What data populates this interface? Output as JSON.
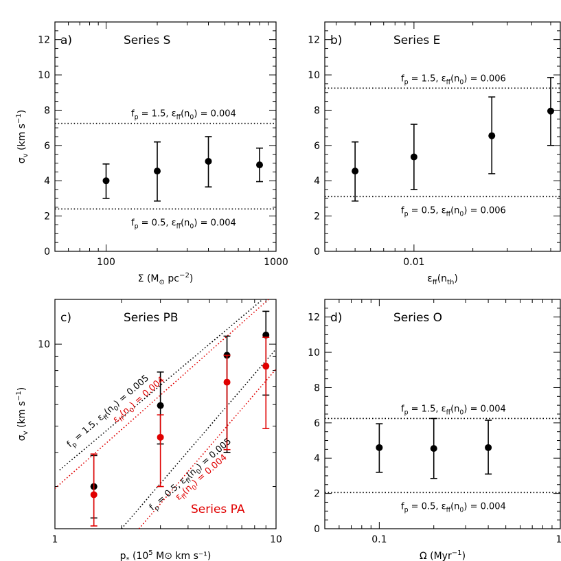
{
  "chart_data": [
    {
      "type": "scatter",
      "panel_label": "a)",
      "series_title": "Series S",
      "xlabel": {
        "base": "Σ (M",
        "sub": "⊙",
        "mid": " pc",
        "sup": "−2",
        "tail": ")"
      },
      "ylabel": {
        "base": "σ",
        "sub": "v",
        "mid": " (km s",
        "sup": "−1",
        "tail": ")"
      },
      "xscale": "log",
      "yscale": "linear",
      "xlim": [
        50,
        1000
      ],
      "ylim": [
        0,
        13
      ],
      "xticks": [
        100,
        1000
      ],
      "xtick_labels": [
        "100",
        "1000"
      ],
      "yticks": [
        0,
        2,
        4,
        6,
        8,
        10,
        12
      ],
      "ytick_labels": [
        "0",
        "2",
        "4",
        "6",
        "8",
        "10",
        "12"
      ],
      "points": [
        {
          "x": 100,
          "y": 4.0,
          "lo": 3.0,
          "hi": 4.95
        },
        {
          "x": 200,
          "y": 4.55,
          "lo": 2.85,
          "hi": 6.2
        },
        {
          "x": 400,
          "y": 5.1,
          "lo": 3.65,
          "hi": 6.5
        },
        {
          "x": 800,
          "y": 4.9,
          "lo": 3.95,
          "hi": 5.85
        }
      ],
      "hlines": [
        {
          "y": 7.25,
          "label": "f_p = 1.5, ε_ff(n_0) = 0.004",
          "label_pos": "above"
        },
        {
          "y": 2.4,
          "label": "f_p = 0.5, ε_ff(n_0) = 0.004",
          "label_pos": "below"
        }
      ]
    },
    {
      "type": "scatter",
      "panel_label": "b)",
      "series_title": "Series E",
      "xlabel": {
        "base": "ε",
        "sub": "ff",
        "mid": "(n",
        "sub2": "th",
        "tail": ")"
      },
      "ylabel": null,
      "xscale": "log",
      "yscale": "linear",
      "xlim": [
        0.0035,
        0.056
      ],
      "ylim": [
        0,
        13
      ],
      "xticks": [
        0.01
      ],
      "xtick_labels": [
        "0.01"
      ],
      "yticks": [
        0,
        2,
        4,
        6,
        8,
        10,
        12
      ],
      "ytick_labels": [
        "0",
        "2",
        "4",
        "6",
        "8",
        "10",
        "12"
      ],
      "points": [
        {
          "x": 0.005,
          "y": 4.55,
          "lo": 2.85,
          "hi": 6.2
        },
        {
          "x": 0.01,
          "y": 5.35,
          "lo": 3.5,
          "hi": 7.2
        },
        {
          "x": 0.025,
          "y": 6.55,
          "lo": 4.4,
          "hi": 8.75
        },
        {
          "x": 0.05,
          "y": 7.95,
          "lo": 6.0,
          "hi": 9.85
        }
      ],
      "hlines": [
        {
          "y": 9.25,
          "label": "f_p = 1.5, ε_ff(n_0) = 0.006",
          "label_pos": "above"
        },
        {
          "y": 3.1,
          "label": "f_p = 0.5, ε_ff(n_0) = 0.006",
          "label_pos": "below"
        }
      ]
    },
    {
      "type": "scatter",
      "panel_label": "c)",
      "series_title": "Series PB",
      "series_title_2": "Series PA",
      "xlabel": {
        "base": "p",
        "sub": "*",
        "mid": " (10",
        "sup": "5",
        "tail": " M⊙ km s⁻¹)"
      },
      "ylabel": {
        "base": "σ",
        "sub": "v",
        "mid": " (km s",
        "sup": "−1",
        "tail": ")"
      },
      "xscale": "log",
      "yscale": "log",
      "xlim": [
        1,
        10
      ],
      "ylim": [
        2.1,
        14.6
      ],
      "xticks": [
        1,
        10
      ],
      "xtick_labels": [
        "1",
        "10"
      ],
      "yticks": [
        10
      ],
      "ytick_labels": [
        "10"
      ],
      "series": [
        {
          "name": "Series PB",
          "color": "#000000",
          "points": [
            {
              "x": 1.5,
              "y": 3.0,
              "lo": 2.3,
              "hi": 3.9
            },
            {
              "x": 3.0,
              "y": 5.95,
              "lo": 4.3,
              "hi": 7.9
            },
            {
              "x": 6.0,
              "y": 9.1,
              "lo": 4.0,
              "hi": 10.7
            },
            {
              "x": 9.0,
              "y": 10.8,
              "lo": 6.5,
              "hi": 13.2
            }
          ]
        },
        {
          "name": "Series PA",
          "color": "#e00000",
          "points": [
            {
              "x": 1.5,
              "y": 2.8,
              "lo": 2.15,
              "hi": 3.95
            },
            {
              "x": 3.0,
              "y": 4.55,
              "lo": 3.0,
              "hi": 5.5
            },
            {
              "x": 6.0,
              "y": 7.25,
              "lo": 4.1,
              "hi": 9.1
            },
            {
              "x": 9.0,
              "y": 8.3,
              "lo": 4.9,
              "hi": 10.6
            }
          ]
        }
      ],
      "diag_lines": [
        {
          "color": "#000000",
          "x": [
            1.05,
            8.7
          ],
          "y": [
            3.45,
            14.6
          ],
          "label": "f_p = 1.5, ε_ff(n_0) = 0.005"
        },
        {
          "color": "#e00000",
          "x": [
            1.0,
            9.25
          ],
          "y": [
            2.95,
            14.6
          ],
          "label": "ε_ff(n_0) = 0.004"
        },
        {
          "color": "#000000",
          "x": [
            2.0,
            10.0
          ],
          "y": [
            2.1,
            9.6
          ],
          "label": "f_p = 0.5, ε_ff(n_0) = 0.005"
        },
        {
          "color": "#e00000",
          "x": [
            2.4,
            10.0
          ],
          "y": [
            2.1,
            8.1
          ],
          "label": "ε_ff(n_0) = 0.004"
        }
      ]
    },
    {
      "type": "scatter",
      "panel_label": "d)",
      "series_title": "Series O",
      "xlabel": {
        "base": "Ω  (Myr",
        "sup": "−1",
        "tail": ")"
      },
      "ylabel": null,
      "xscale": "log",
      "yscale": "linear",
      "xlim": [
        0.05,
        1.0
      ],
      "ylim": [
        0,
        13
      ],
      "xticks": [
        0.1,
        1.0
      ],
      "xtick_labels": [
        "0.1",
        "1."
      ],
      "yticks": [
        0,
        2,
        4,
        6,
        8,
        10,
        12
      ],
      "ytick_labels": [
        "0",
        "2",
        "4",
        "6",
        "8",
        "10",
        "12"
      ],
      "points": [
        {
          "x": 0.1,
          "y": 4.6,
          "lo": 3.2,
          "hi": 5.95
        },
        {
          "x": 0.2,
          "y": 4.55,
          "lo": 2.85,
          "hi": 6.25
        },
        {
          "x": 0.4,
          "y": 4.6,
          "lo": 3.1,
          "hi": 6.15
        }
      ],
      "hlines": [
        {
          "y": 6.25,
          "label": "f_p = 1.5, ε_ff(n_0) = 0.004",
          "label_pos": "above"
        },
        {
          "y": 2.05,
          "label": "f_p = 0.5, ε_ff(n_0) = 0.004",
          "label_pos": "below"
        }
      ]
    }
  ]
}
